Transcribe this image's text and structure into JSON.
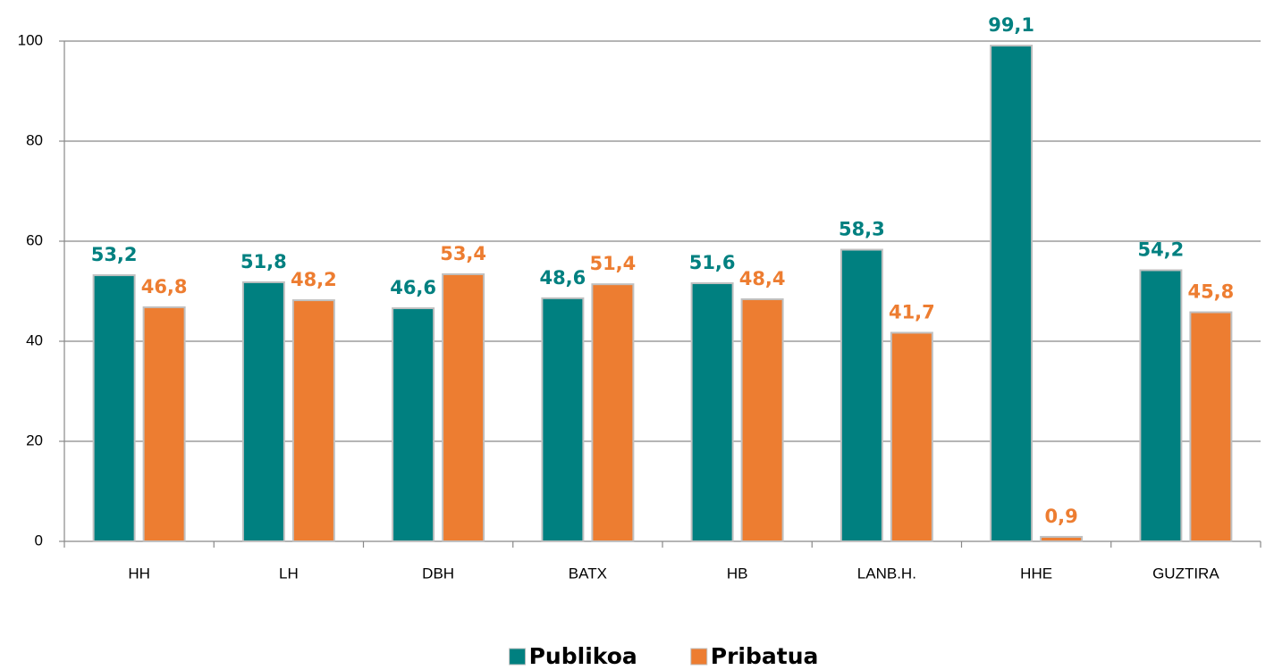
{
  "chart_data": {
    "type": "bar",
    "categories": [
      "HH",
      "LH",
      "DBH",
      "BATX",
      "HB",
      "LANB.H.",
      "HHE",
      "GUZTIRA"
    ],
    "series": [
      {
        "name": "Publikoa",
        "color": "#008080",
        "values": [
          53.2,
          51.8,
          46.6,
          48.6,
          51.6,
          58.3,
          99.1,
          54.2
        ],
        "value_labels": [
          "53,2",
          "51,8",
          "46,6",
          "48,6",
          "51,6",
          "58,3",
          "99,1",
          "54,2"
        ]
      },
      {
        "name": "Pribatua",
        "color": "#ED7D31",
        "values": [
          46.8,
          48.2,
          53.4,
          51.4,
          48.4,
          41.7,
          0.9,
          45.8
        ],
        "value_labels": [
          "46,8",
          "48,2",
          "53,4",
          "51,4",
          "48,4",
          "41,7",
          "0,9",
          "45,8"
        ]
      }
    ],
    "ylim": [
      0,
      100
    ],
    "yticks": [
      0,
      20,
      40,
      60,
      80,
      100
    ],
    "grid": true,
    "legend": "bottom"
  }
}
